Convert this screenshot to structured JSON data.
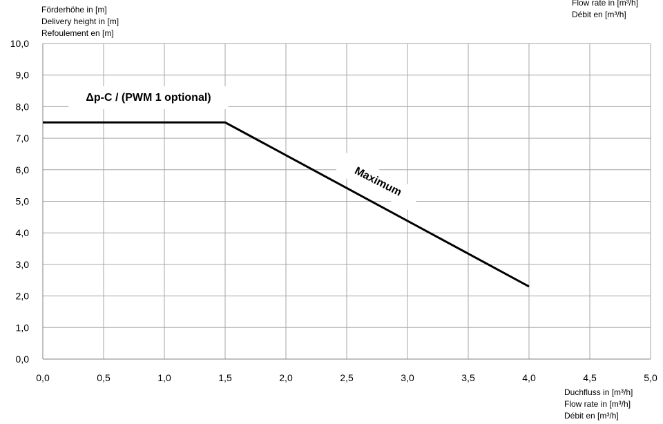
{
  "chart_data": {
    "type": "line",
    "y_label": [
      "Förderhöhe in [m]",
      "Delivery height in [m]",
      "Refoulement en [m]"
    ],
    "top_right_label": [
      "Flow rate in [m³/h]",
      "Débit en [m³/h]"
    ],
    "x_label": [
      "Duchfluss in [m³/h]",
      "Flow rate in [m³/h]",
      "Débit en [m³/h]"
    ],
    "annotations": [
      "Δp-C  / (PWM 1 optional)",
      "Maximum"
    ],
    "x": [
      0,
      1.5,
      4.0
    ],
    "values": [
      7.5,
      7.5,
      2.3
    ],
    "color": "#000000",
    "grid": true,
    "xlim": [
      0,
      5
    ],
    "ylim": [
      0,
      10
    ],
    "xticks": [
      {
        "value": 0,
        "label": "0,0"
      },
      {
        "value": 0.5,
        "label": "0,5"
      },
      {
        "value": 1,
        "label": "1,0"
      },
      {
        "value": 1.5,
        "label": "1,5"
      },
      {
        "value": 2,
        "label": "2,0"
      },
      {
        "value": 2.5,
        "label": "2,5"
      },
      {
        "value": 3,
        "label": "3,0"
      },
      {
        "value": 3.5,
        "label": "3,5"
      },
      {
        "value": 4,
        "label": "4,0"
      },
      {
        "value": 4.5,
        "label": "4,5"
      },
      {
        "value": 5,
        "label": "5,0"
      }
    ],
    "yticks": [
      {
        "value": 0,
        "label": "0,0"
      },
      {
        "value": 1,
        "label": "1,0"
      },
      {
        "value": 2,
        "label": "2,0"
      },
      {
        "value": 3,
        "label": "3,0"
      },
      {
        "value": 4,
        "label": "4,0"
      },
      {
        "value": 5,
        "label": "5,0"
      },
      {
        "value": 6,
        "label": "6,0"
      },
      {
        "value": 7,
        "label": "7,0"
      },
      {
        "value": 8,
        "label": "8,0"
      },
      {
        "value": 9,
        "label": "9,0"
      },
      {
        "value": 10,
        "label": "10,0"
      }
    ]
  }
}
